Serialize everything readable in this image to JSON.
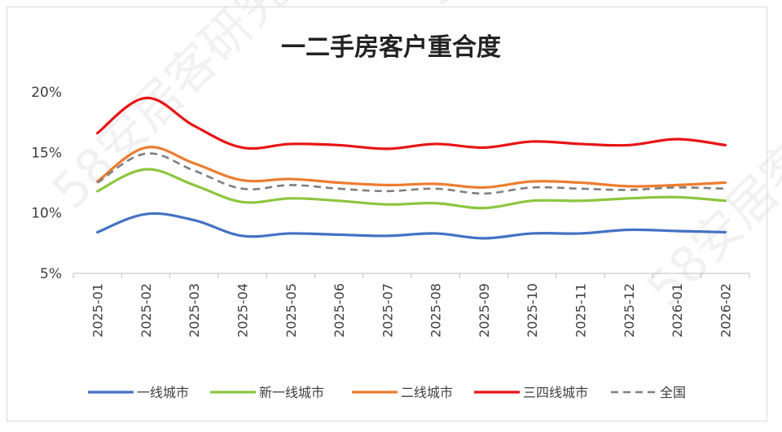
{
  "chart_data": {
    "type": "line",
    "title": "一二手房客户重合度",
    "xlabel": "",
    "ylabel": "",
    "categories": [
      "2025-01",
      "2025-02",
      "2025-03",
      "2025-04",
      "2025-05",
      "2025-06",
      "2025-07",
      "2025-08",
      "2025-09",
      "2025-10",
      "2025-11",
      "2025-12",
      "2026-01",
      "2026-02"
    ],
    "ylim": [
      5,
      20
    ],
    "yticks": [
      "5%",
      "10%",
      "15%",
      "20%"
    ],
    "yticks_values": [
      5,
      10,
      15,
      20
    ],
    "grid": false,
    "legend_position": "bottom",
    "series": [
      {
        "name": "一线城市",
        "color": "#4472c4",
        "dash": "solid",
        "values": [
          8.4,
          9.9,
          9.4,
          8.1,
          8.3,
          8.2,
          8.1,
          8.3,
          7.9,
          8.3,
          8.3,
          8.6,
          8.5,
          8.4
        ]
      },
      {
        "name": "新一线城市",
        "color": "#8cc63f",
        "dash": "solid",
        "values": [
          11.8,
          13.6,
          12.3,
          10.9,
          11.2,
          11.0,
          10.7,
          10.8,
          10.4,
          11.0,
          11.0,
          11.2,
          11.3,
          11.0
        ]
      },
      {
        "name": "二线城市",
        "color": "#ed7d31",
        "dash": "solid",
        "values": [
          12.6,
          15.4,
          14.1,
          12.7,
          12.8,
          12.5,
          12.3,
          12.4,
          12.1,
          12.6,
          12.5,
          12.2,
          12.3,
          12.5
        ]
      },
      {
        "name": "三四线城市",
        "color": "#e81416",
        "dash": "solid",
        "values": [
          16.6,
          19.5,
          17.2,
          15.4,
          15.7,
          15.6,
          15.3,
          15.7,
          15.4,
          15.9,
          15.7,
          15.6,
          16.1,
          15.6
        ]
      },
      {
        "name": "全国",
        "color": "#7f7f7f",
        "dash": "dashed",
        "values": [
          12.5,
          14.9,
          13.5,
          12.0,
          12.3,
          12.0,
          11.8,
          12.0,
          11.6,
          12.1,
          12.0,
          11.9,
          12.1,
          12.0
        ]
      }
    ]
  },
  "watermark": "58安居客研究院"
}
